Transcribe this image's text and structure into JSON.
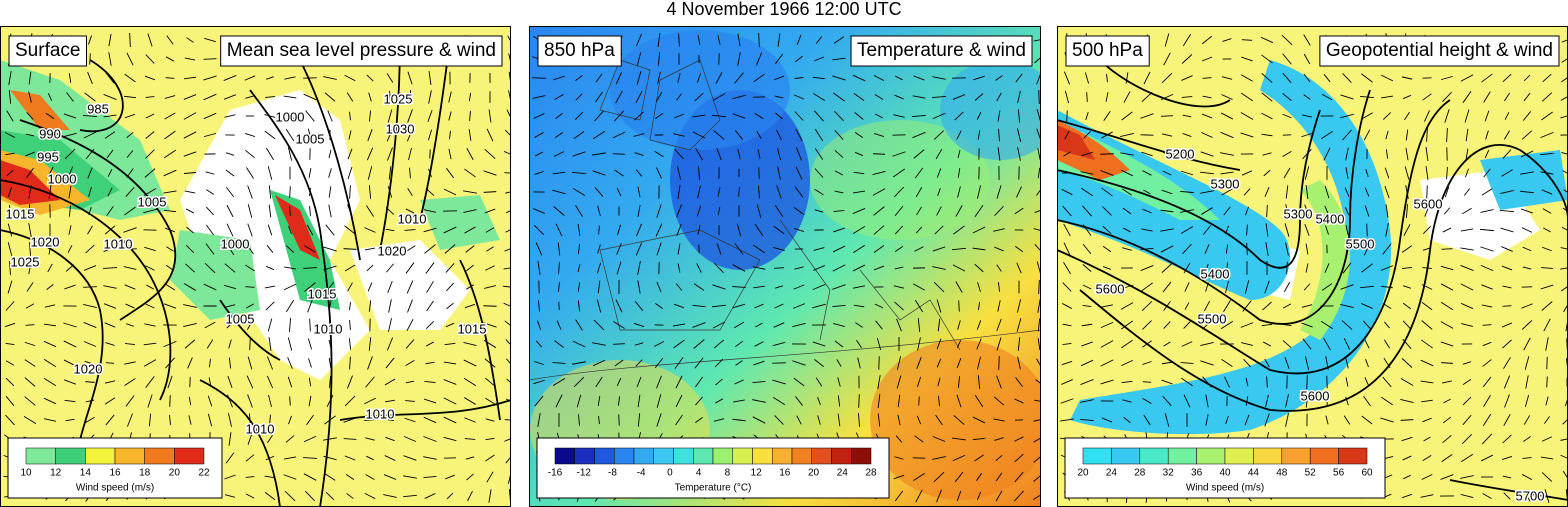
{
  "title": "4 November 1966 12:00 UTC",
  "panels": [
    {
      "level": "Surface",
      "field": "Mean sea level pressure & wind",
      "colorbar": {
        "label": "Wind speed (m/s)",
        "ticks": [
          10,
          12,
          14,
          16,
          18,
          20,
          22
        ],
        "colors": [
          "#7ee89a",
          "#3fd07a",
          "#f3f33a",
          "#f7b52b",
          "#f07a1e",
          "#e02a1a"
        ]
      },
      "contour_labels": [
        985,
        990,
        995,
        1000,
        1005,
        1010,
        1015,
        1020,
        1025,
        1000,
        1005,
        1010,
        1015,
        1025,
        1030,
        1020,
        1000,
        1005,
        1010,
        1015,
        1020,
        1010,
        1010
      ]
    },
    {
      "level": "850 hPa",
      "field": "Temperature & wind",
      "colorbar": {
        "label": "Temperature (°C)",
        "ticks": [
          -16,
          -12,
          -8,
          -4,
          0,
          4,
          8,
          12,
          16,
          20,
          24,
          28
        ],
        "colors": [
          "#0a0a8c",
          "#1a2fc0",
          "#1e5ae0",
          "#2a85f0",
          "#33aaf0",
          "#3cc8f0",
          "#40e0e0",
          "#5ee8b0",
          "#9cf070",
          "#d8f050",
          "#f8e040",
          "#f8b030",
          "#f08020",
          "#e05020",
          "#c02010",
          "#8c1008"
        ]
      },
      "contour_labels": []
    },
    {
      "level": "500 hPa",
      "field": "Geopotential height & wind",
      "colorbar": {
        "label": "Wind speed (m/s)",
        "ticks": [
          20,
          24,
          28,
          32,
          36,
          40,
          44,
          48,
          52,
          56,
          60
        ],
        "colors": [
          "#30e0f0",
          "#38c8f0",
          "#48e8c8",
          "#70f0a0",
          "#a8f070",
          "#e0f050",
          "#f8d840",
          "#f8a030",
          "#f07020",
          "#d83818"
        ]
      },
      "contour_labels": [
        5200,
        5300,
        5300,
        5400,
        5400,
        5500,
        5500,
        5600,
        5600,
        5600,
        5700
      ]
    }
  ]
}
